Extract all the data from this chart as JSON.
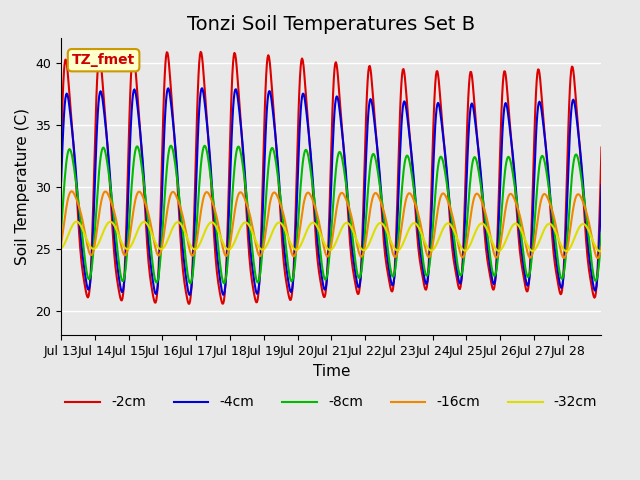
{
  "title": "Tonzi Soil Temperatures Set B",
  "xlabel": "Time",
  "ylabel": "Soil Temperature (C)",
  "ylim": [
    18,
    42
  ],
  "annotation": "TZ_fmet",
  "x_tick_labels": [
    "Jul 13",
    "Jul 14",
    "Jul 15",
    "Jul 16",
    "Jul 17",
    "Jul 18",
    "Jul 19",
    "Jul 20",
    "Jul 21",
    "Jul 22",
    "Jul 23",
    "Jul 24",
    "Jul 25",
    "Jul 26",
    "Jul 27",
    "Jul 28"
  ],
  "lines": [
    {
      "label": "-2cm",
      "color": "#dd0000",
      "lw": 1.5
    },
    {
      "label": "-4cm",
      "color": "#0000dd",
      "lw": 1.5
    },
    {
      "label": "-8cm",
      "color": "#00bb00",
      "lw": 1.5
    },
    {
      "label": "-16cm",
      "color": "#ee8800",
      "lw": 1.5
    },
    {
      "label": "-32cm",
      "color": "#dddd00",
      "lw": 1.5
    }
  ],
  "bg_color": "#e8e8e8",
  "plot_bg_color": "#e8e8e8",
  "title_fontsize": 14,
  "axis_label_fontsize": 11,
  "tick_fontsize": 9
}
